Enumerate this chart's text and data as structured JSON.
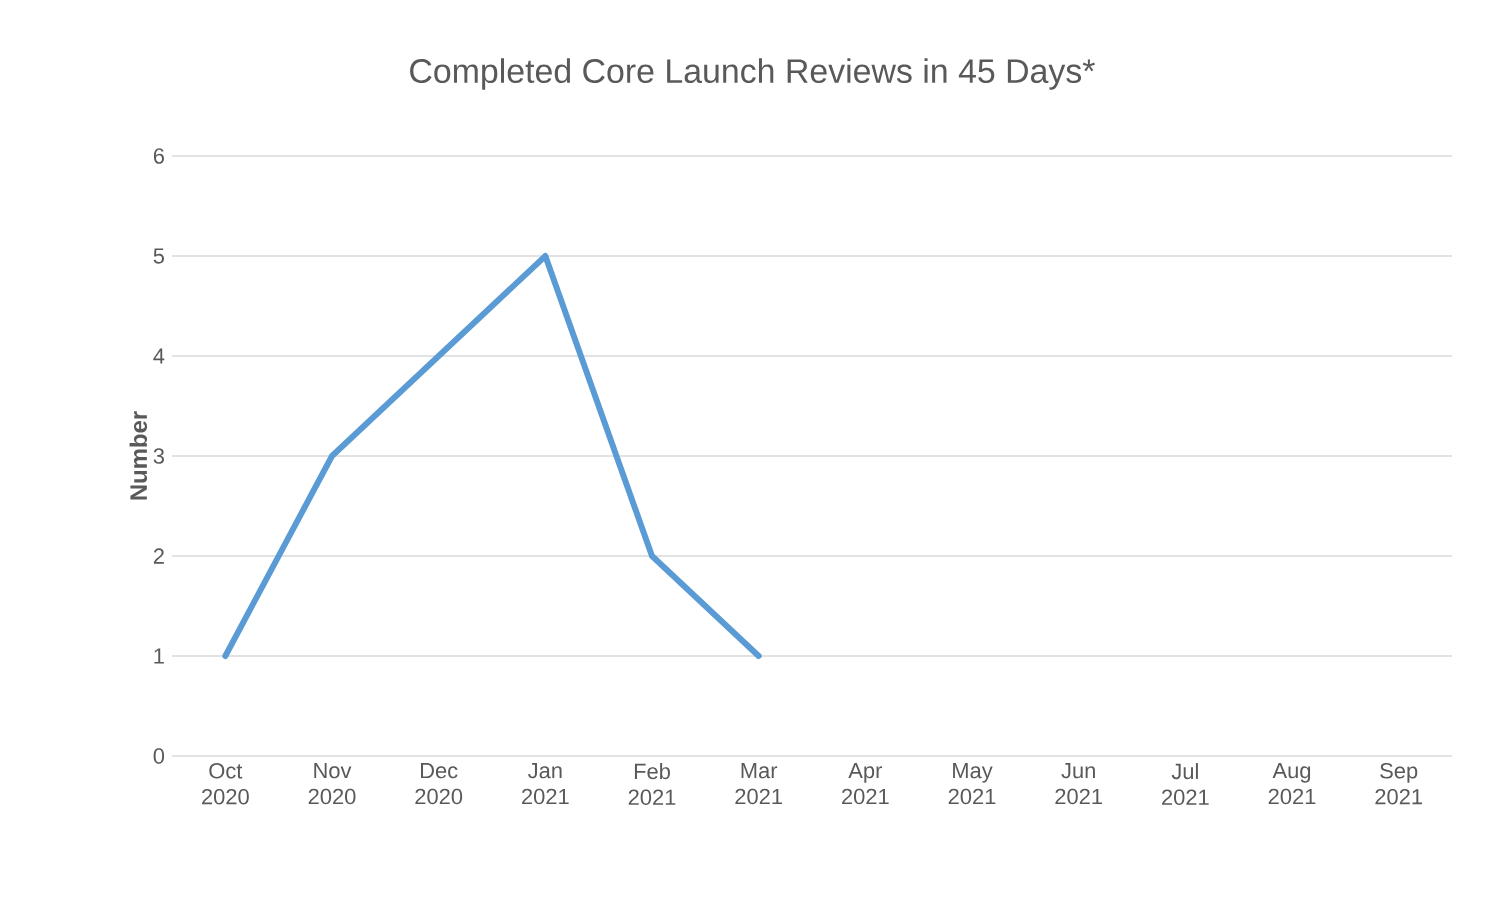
{
  "chart_data": {
    "type": "line",
    "title": "Completed Core Launch Reviews in 45 Days*",
    "ylabel": "Number",
    "categories": [
      "Oct 2020",
      "Nov 2020",
      "Dec 2020",
      "Jan 2021",
      "Feb 2021",
      "Mar 2021",
      "Apr 2021",
      "May 2021",
      "Jun 2021",
      "Jul 2021",
      "Aug 2021",
      "Sep 2021"
    ],
    "series": [
      {
        "color": "#5b9bd5",
        "values": [
          1,
          3,
          4,
          5,
          2,
          1,
          null,
          null,
          null,
          null,
          null,
          null
        ]
      }
    ],
    "ylim": [
      0,
      6
    ],
    "yticks": [
      0,
      1,
      2,
      3,
      4,
      5,
      6
    ],
    "grid": "y",
    "marker": "none",
    "line_style": "solid"
  }
}
